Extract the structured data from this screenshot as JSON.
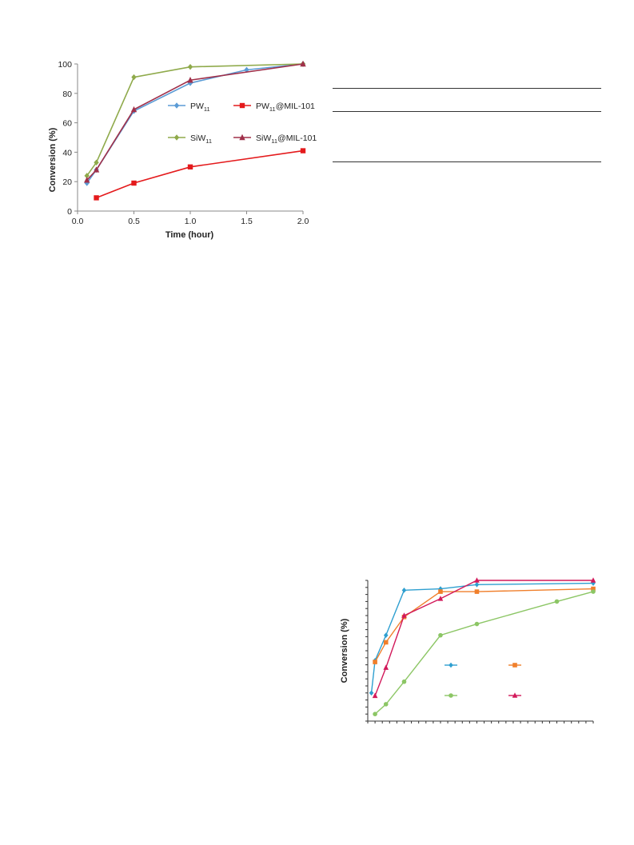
{
  "page": {
    "rules_count": 3
  },
  "chart_data": [
    {
      "type": "line",
      "ylabel": "Conversion (%)",
      "xlabel": "Time (hour)",
      "xlim": [
        0,
        2.0
      ],
      "ylim": [
        0,
        100
      ],
      "xticks": [
        0.0,
        0.5,
        1.0,
        1.5,
        2.0
      ],
      "xtick_labels": [
        "0.0",
        "0.5",
        "1.0",
        "1.5",
        "2.0"
      ],
      "yticks": [
        0,
        20,
        40,
        60,
        80,
        100
      ],
      "ytick_labels": [
        "0",
        "20",
        "40",
        "60",
        "80",
        "100"
      ],
      "legend": "inside, right",
      "series": [
        {
          "name": "PW",
          "sub": "11",
          "suffix": "",
          "color": "#5b9bd5",
          "marker": "diamond",
          "x": [
            0.083,
            0.167,
            0.5,
            1.0,
            1.5,
            2.0
          ],
          "y": [
            19,
            28,
            68,
            87,
            96,
            100
          ]
        },
        {
          "name": "PW",
          "sub": "11",
          "suffix": "@MIL-101",
          "color": "#e41a1c",
          "marker": "square",
          "x": [
            0.167,
            0.5,
            1.0,
            2.0
          ],
          "y": [
            9,
            19,
            30,
            41
          ]
        },
        {
          "name": "SiW",
          "sub": "11",
          "suffix": "",
          "color": "#8faa4b",
          "marker": "diamond",
          "x": [
            0.083,
            0.167,
            0.5,
            1.0,
            2.0
          ],
          "y": [
            24,
            33,
            91,
            98,
            100
          ]
        },
        {
          "name": "SiW",
          "sub": "11",
          "suffix": "@MIL-101",
          "color": "#a0304a",
          "marker": "triangle",
          "x": [
            0.083,
            0.167,
            0.5,
            1.0,
            2.0
          ],
          "y": [
            21,
            28,
            69,
            89,
            100
          ]
        }
      ]
    },
    {
      "type": "line",
      "ylabel": "Conversion (%)",
      "xlabel": "",
      "xlim": [
        0,
        62
      ],
      "ylim": [
        0,
        100
      ],
      "legend": "inside, right",
      "series": [
        {
          "name": "",
          "color": "#2e9fd0",
          "marker": "diamond",
          "x": [
            1,
            2,
            5,
            10,
            20,
            30,
            62
          ],
          "y": [
            20,
            43,
            61,
            93,
            94,
            97,
            98
          ]
        },
        {
          "name": "",
          "color": "#f07f2b",
          "marker": "square",
          "x": [
            2,
            5,
            10,
            20,
            30,
            62
          ],
          "y": [
            42,
            56,
            74,
            92,
            92,
            94
          ]
        },
        {
          "name": "",
          "color": "#8cc665",
          "marker": "circle",
          "x": [
            2,
            5,
            10,
            20,
            30,
            52,
            62
          ],
          "y": [
            5,
            12,
            28,
            61,
            69,
            85,
            92
          ]
        },
        {
          "name": "",
          "color": "#d2195a",
          "marker": "triangle",
          "x": [
            2,
            5,
            10,
            20,
            30,
            62
          ],
          "y": [
            18,
            38,
            75,
            87,
            100,
            100
          ]
        }
      ]
    }
  ]
}
